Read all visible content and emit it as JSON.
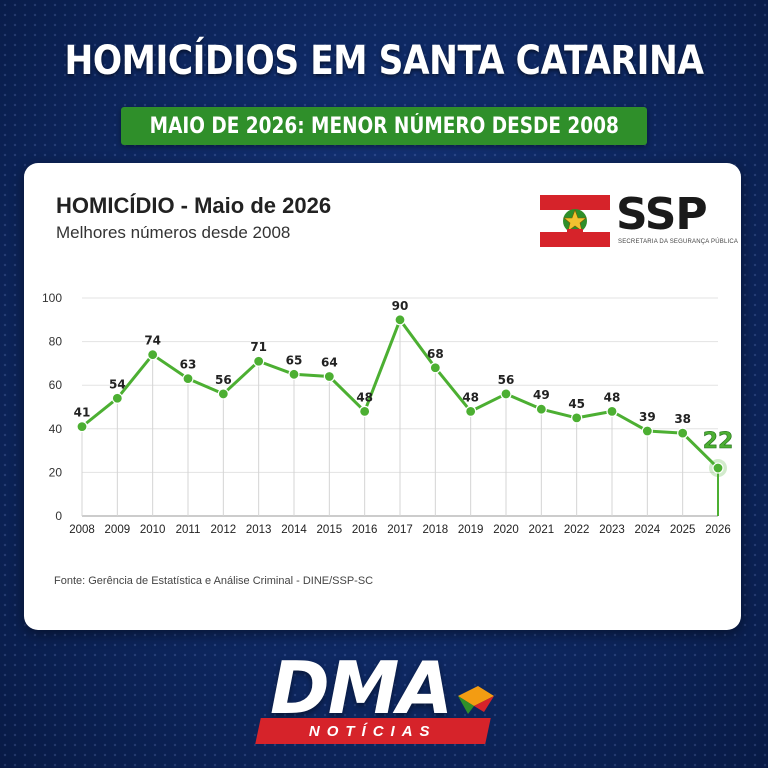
{
  "header": {
    "title": "HOMICÍDIOS EM SANTA CATARINA",
    "subtitle": "MAIO DE 2026: MENOR NÚMERO DESDE 2008"
  },
  "logo": {
    "name": "SSP",
    "subtitle": "SECRETARIA DA SEGURANÇA PÚBLICA"
  },
  "footer_logo": {
    "name": "DMA",
    "tagline": "NOTÍCIAS"
  },
  "colors": {
    "background": "#0f2a66",
    "accent_green": "#4caf32",
    "subtitle_bar": "#2f8f2a",
    "brand_red": "#d6232a"
  },
  "chart_data": {
    "type": "line",
    "title": "HOMICÍDIO - Maio de 2026",
    "subtitle": "Melhores números desde 2008",
    "x": [
      "2008",
      "2009",
      "2010",
      "2011",
      "2012",
      "2013",
      "2014",
      "2015",
      "2016",
      "2017",
      "2018",
      "2019",
      "2020",
      "2021",
      "2022",
      "2023",
      "2024",
      "2025",
      "2026"
    ],
    "series": [
      {
        "values": [
          41,
          54,
          74,
          63,
          56,
          71,
          65,
          64,
          48,
          90,
          68,
          48,
          56,
          49,
          45,
          48,
          39,
          38,
          22
        ]
      }
    ],
    "ylim": [
      0,
      100
    ],
    "yticks": [
      0,
      20,
      40,
      60,
      80,
      100
    ],
    "grid": true,
    "highlight": {
      "x": "2026",
      "value": 22
    },
    "source": "Fonte: Gerência de Estatística e Análise Criminal - DINE/SSP-SC"
  }
}
